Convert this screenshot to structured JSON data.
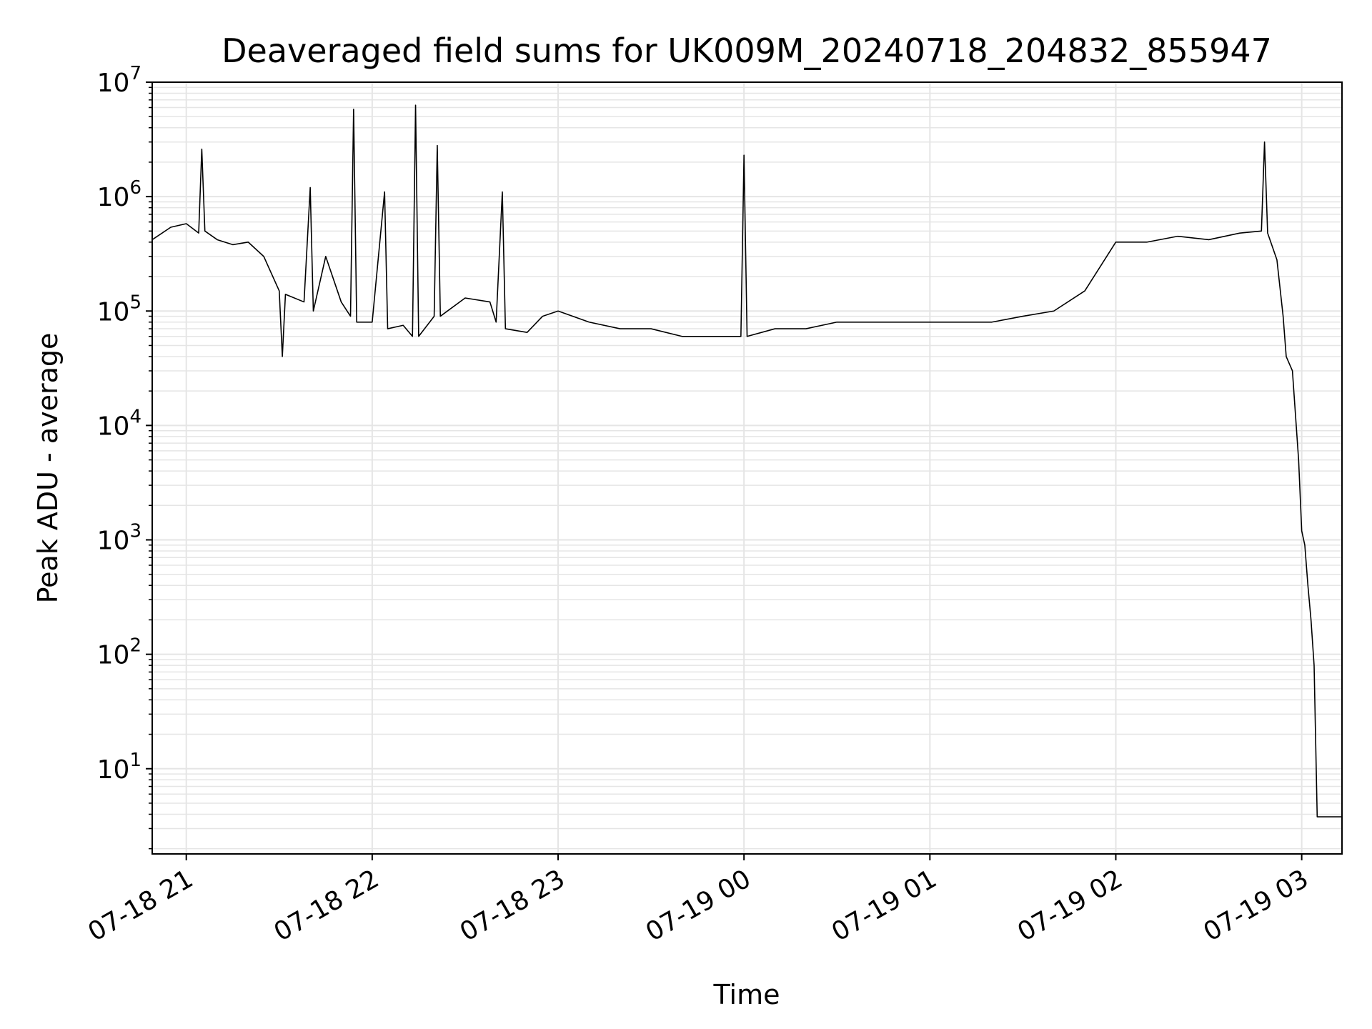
{
  "chart_data": {
    "type": "line",
    "title": "Deaveraged field sums for UK009M_20240718_204832_855947",
    "xlabel": "Time",
    "ylabel": "Peak ADU - average",
    "yscale": "log",
    "ylim": [
      1.8,
      10000000
    ],
    "xlim": [
      "07-18 20:49",
      "07-19 03:13"
    ],
    "grid": true,
    "line_color": "#000000",
    "grid_color": "#e5e5e5",
    "x_ticks": [
      {
        "label": "07-18 21",
        "value": "07-18 21:00"
      },
      {
        "label": "07-18 22",
        "value": "07-18 22:00"
      },
      {
        "label": "07-18 23",
        "value": "07-18 23:00"
      },
      {
        "label": "07-19 00",
        "value": "07-19 00:00"
      },
      {
        "label": "07-19 01",
        "value": "07-19 01:00"
      },
      {
        "label": "07-19 02",
        "value": "07-19 02:00"
      },
      {
        "label": "07-19 03",
        "value": "07-19 03:00"
      }
    ],
    "y_ticks": [
      {
        "base": "10",
        "exp": "1",
        "value": 10
      },
      {
        "base": "10",
        "exp": "2",
        "value": 100
      },
      {
        "base": "10",
        "exp": "3",
        "value": 1000
      },
      {
        "base": "10",
        "exp": "4",
        "value": 10000
      },
      {
        "base": "10",
        "exp": "5",
        "value": 100000
      },
      {
        "base": "10",
        "exp": "6",
        "value": 1000000
      },
      {
        "base": "10",
        "exp": "7",
        "value": 10000000
      }
    ],
    "series": [
      {
        "color": "#000000",
        "points": [
          [
            "07-18 20:49",
            420000
          ],
          [
            "07-18 20:55",
            540000
          ],
          [
            "07-18 21:00",
            580000
          ],
          [
            "07-18 21:04",
            480000
          ],
          [
            "07-18 21:05",
            2600000
          ],
          [
            "07-18 21:06",
            500000
          ],
          [
            "07-18 21:10",
            420000
          ],
          [
            "07-18 21:15",
            380000
          ],
          [
            "07-18 21:20",
            400000
          ],
          [
            "07-18 21:25",
            300000
          ],
          [
            "07-18 21:30",
            150000
          ],
          [
            "07-18 21:31",
            40000
          ],
          [
            "07-18 21:32",
            140000
          ],
          [
            "07-18 21:38",
            120000
          ],
          [
            "07-18 21:40",
            1200000
          ],
          [
            "07-18 21:41",
            100000
          ],
          [
            "07-18 21:45",
            300000
          ],
          [
            "07-18 21:50",
            120000
          ],
          [
            "07-18 21:53",
            90000
          ],
          [
            "07-18 21:54",
            5800000
          ],
          [
            "07-18 21:55",
            80000
          ],
          [
            "07-18 22:00",
            80000
          ],
          [
            "07-18 22:04",
            1100000
          ],
          [
            "07-18 22:05",
            70000
          ],
          [
            "07-18 22:10",
            75000
          ],
          [
            "07-18 22:13",
            60000
          ],
          [
            "07-18 22:14",
            6300000
          ],
          [
            "07-18 22:15",
            60000
          ],
          [
            "07-18 22:20",
            90000
          ],
          [
            "07-18 22:21",
            2800000
          ],
          [
            "07-18 22:22",
            90000
          ],
          [
            "07-18 22:30",
            130000
          ],
          [
            "07-18 22:38",
            120000
          ],
          [
            "07-18 22:40",
            80000
          ],
          [
            "07-18 22:42",
            1100000
          ],
          [
            "07-18 22:43",
            70000
          ],
          [
            "07-18 22:50",
            65000
          ],
          [
            "07-18 22:55",
            90000
          ],
          [
            "07-18 23:00",
            100000
          ],
          [
            "07-18 23:10",
            80000
          ],
          [
            "07-18 23:20",
            70000
          ],
          [
            "07-18 23:30",
            70000
          ],
          [
            "07-18 23:40",
            60000
          ],
          [
            "07-18 23:50",
            60000
          ],
          [
            "07-18 23:59",
            60000
          ],
          [
            "07-19 00:00",
            2300000
          ],
          [
            "07-19 00:01",
            60000
          ],
          [
            "07-19 00:10",
            70000
          ],
          [
            "07-19 00:20",
            70000
          ],
          [
            "07-19 00:30",
            80000
          ],
          [
            "07-19 00:40",
            80000
          ],
          [
            "07-19 00:50",
            80000
          ],
          [
            "07-19 01:00",
            80000
          ],
          [
            "07-19 01:10",
            80000
          ],
          [
            "07-19 01:20",
            80000
          ],
          [
            "07-19 01:30",
            90000
          ],
          [
            "07-19 01:40",
            100000
          ],
          [
            "07-19 01:50",
            150000
          ],
          [
            "07-19 02:00",
            400000
          ],
          [
            "07-19 02:10",
            400000
          ],
          [
            "07-19 02:20",
            450000
          ],
          [
            "07-19 02:30",
            420000
          ],
          [
            "07-19 02:40",
            480000
          ],
          [
            "07-19 02:47",
            500000
          ],
          [
            "07-19 02:48",
            3000000
          ],
          [
            "07-19 02:49",
            480000
          ],
          [
            "07-19 02:52",
            280000
          ],
          [
            "07-19 02:54",
            90000
          ],
          [
            "07-19 02:55",
            40000
          ],
          [
            "07-19 02:57",
            30000
          ],
          [
            "07-19 02:59",
            5000
          ],
          [
            "07-19 03:00",
            1200
          ],
          [
            "07-19 03:01",
            900
          ],
          [
            "07-19 03:02",
            400
          ],
          [
            "07-19 03:03",
            200
          ],
          [
            "07-19 03:04",
            80
          ],
          [
            "07-19 03:05",
            3.8
          ],
          [
            "07-19 03:13",
            3.8
          ]
        ]
      }
    ]
  }
}
